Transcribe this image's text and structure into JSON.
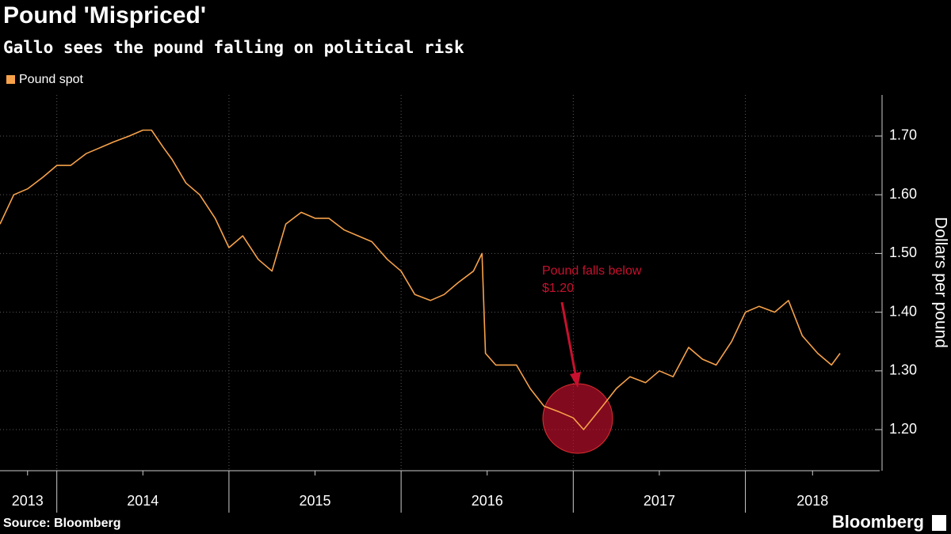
{
  "chart_data": {
    "type": "line",
    "title": "Pound 'Mispriced'",
    "subtitle": "Gallo sees the pound falling on political risk",
    "y_axis_label": "Dollars per pound",
    "source": "Source: Bloomberg",
    "brand": "Bloomberg",
    "annotation": [
      "Pound falls below",
      "$1.20"
    ],
    "annotation_color": "#c8102e",
    "x": [
      2013.67,
      2013.75,
      2013.83,
      2013.92,
      2014.0,
      2014.08,
      2014.17,
      2014.25,
      2014.33,
      2014.42,
      2014.5,
      2014.55,
      2014.62,
      2014.67,
      2014.75,
      2014.83,
      2014.92,
      2015.0,
      2015.08,
      2015.17,
      2015.25,
      2015.33,
      2015.42,
      2015.5,
      2015.58,
      2015.67,
      2015.75,
      2015.83,
      2015.92,
      2016.0,
      2016.08,
      2016.17,
      2016.25,
      2016.33,
      2016.42,
      2016.47,
      2016.49,
      2016.55,
      2016.67,
      2016.75,
      2016.83,
      2016.92,
      2017.0,
      2017.06,
      2017.17,
      2017.25,
      2017.33,
      2017.42,
      2017.5,
      2017.58,
      2017.67,
      2017.75,
      2017.83,
      2017.92,
      2018.0,
      2018.08,
      2018.17,
      2018.25,
      2018.33,
      2018.42,
      2018.5,
      2018.55
    ],
    "series": [
      {
        "name": "Pound spot",
        "color": "#f7a24a",
        "values": [
          1.55,
          1.6,
          1.61,
          1.63,
          1.65,
          1.65,
          1.67,
          1.68,
          1.69,
          1.7,
          1.71,
          1.71,
          1.68,
          1.66,
          1.62,
          1.6,
          1.56,
          1.51,
          1.53,
          1.49,
          1.47,
          1.55,
          1.57,
          1.56,
          1.56,
          1.54,
          1.53,
          1.52,
          1.49,
          1.47,
          1.43,
          1.42,
          1.43,
          1.45,
          1.47,
          1.5,
          1.33,
          1.31,
          1.31,
          1.27,
          1.24,
          1.23,
          1.22,
          1.2,
          1.24,
          1.27,
          1.29,
          1.28,
          1.3,
          1.29,
          1.34,
          1.32,
          1.31,
          1.35,
          1.4,
          1.41,
          1.4,
          1.42,
          1.36,
          1.33,
          1.31,
          1.33
        ]
      }
    ],
    "xlim": [
      2013.67,
      2018.78
    ],
    "xgrid": [
      2014,
      2015,
      2016,
      2017,
      2018
    ],
    "xticks": [
      {
        "value": 2013.83,
        "label": "2013"
      },
      {
        "value": 2014.5,
        "label": "2014"
      },
      {
        "value": 2015.5,
        "label": "2015"
      },
      {
        "value": 2016.5,
        "label": "2016"
      },
      {
        "value": 2017.5,
        "label": "2017"
      },
      {
        "value": 2018.39,
        "label": "2018"
      }
    ],
    "ylim": [
      1.13,
      1.77
    ],
    "yticks": [
      {
        "value": 1.2,
        "label": "1.20"
      },
      {
        "value": 1.3,
        "label": "1.30"
      },
      {
        "value": 1.4,
        "label": "1.40"
      },
      {
        "value": 1.5,
        "label": "1.50"
      },
      {
        "value": 1.6,
        "label": "1.60"
      },
      {
        "value": 1.7,
        "label": "1.70"
      }
    ],
    "grid": true
  }
}
